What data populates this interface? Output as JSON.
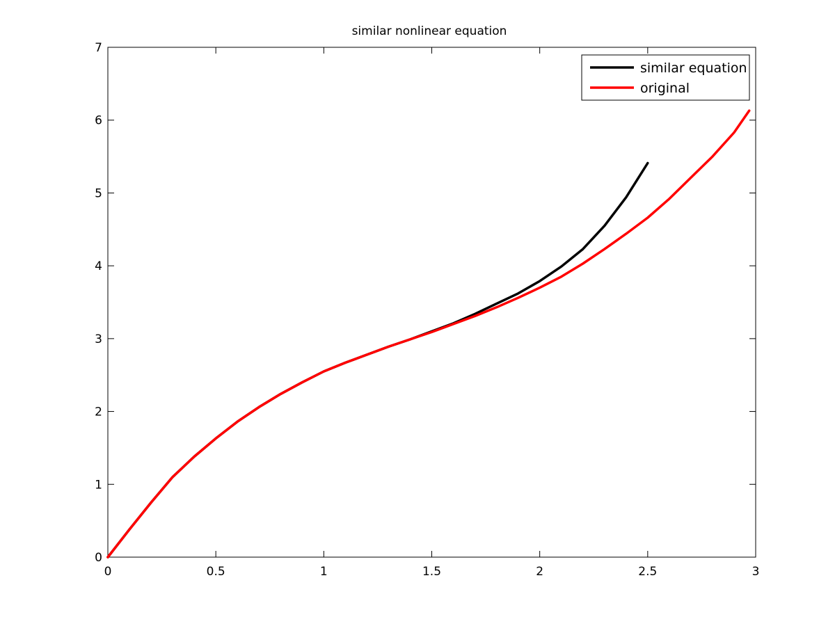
{
  "chart_data": {
    "type": "line",
    "title": "similar nonlinear equation",
    "xlabel": "",
    "ylabel": "",
    "xlim": [
      0,
      3
    ],
    "ylim": [
      0,
      7
    ],
    "xticks": [
      0,
      0.5,
      1,
      1.5,
      2,
      2.5,
      3
    ],
    "xtick_labels": [
      "0",
      "0.5",
      "1",
      "1.5",
      "2",
      "2.5",
      "3"
    ],
    "yticks": [
      0,
      1,
      2,
      3,
      4,
      5,
      6,
      7
    ],
    "ytick_labels": [
      "0",
      "1",
      "2",
      "3",
      "4",
      "5",
      "6",
      "7"
    ],
    "grid": false,
    "legend_position": "top-right",
    "series": [
      {
        "name": "similar equation",
        "color": "#000000",
        "x": [
          0,
          0.1,
          0.2,
          0.3,
          0.4,
          0.5,
          0.6,
          0.7,
          0.8,
          0.9,
          1.0,
          1.1,
          1.2,
          1.3,
          1.4,
          1.5,
          1.6,
          1.7,
          1.8,
          1.9,
          2.0,
          2.1,
          2.2,
          2.3,
          2.4,
          2.5
        ],
        "y": [
          0,
          0.38,
          0.75,
          1.1,
          1.38,
          1.63,
          1.86,
          2.06,
          2.24,
          2.4,
          2.55,
          2.67,
          2.78,
          2.89,
          2.99,
          3.1,
          3.21,
          3.34,
          3.48,
          3.62,
          3.79,
          3.99,
          4.23,
          4.55,
          4.94,
          5.41
        ]
      },
      {
        "name": "original",
        "color": "#ff0000",
        "x": [
          0,
          0.1,
          0.2,
          0.3,
          0.4,
          0.5,
          0.6,
          0.7,
          0.8,
          0.9,
          1.0,
          1.1,
          1.2,
          1.3,
          1.4,
          1.5,
          1.6,
          1.7,
          1.8,
          1.9,
          2.0,
          2.1,
          2.2,
          2.3,
          2.4,
          2.5,
          2.6,
          2.7,
          2.8,
          2.9,
          2.97
        ],
        "y": [
          0,
          0.38,
          0.75,
          1.1,
          1.38,
          1.63,
          1.86,
          2.06,
          2.24,
          2.4,
          2.55,
          2.67,
          2.78,
          2.89,
          2.99,
          3.09,
          3.2,
          3.31,
          3.43,
          3.56,
          3.7,
          3.85,
          4.03,
          4.23,
          4.44,
          4.66,
          4.92,
          5.21,
          5.5,
          5.83,
          6.13
        ]
      }
    ]
  }
}
